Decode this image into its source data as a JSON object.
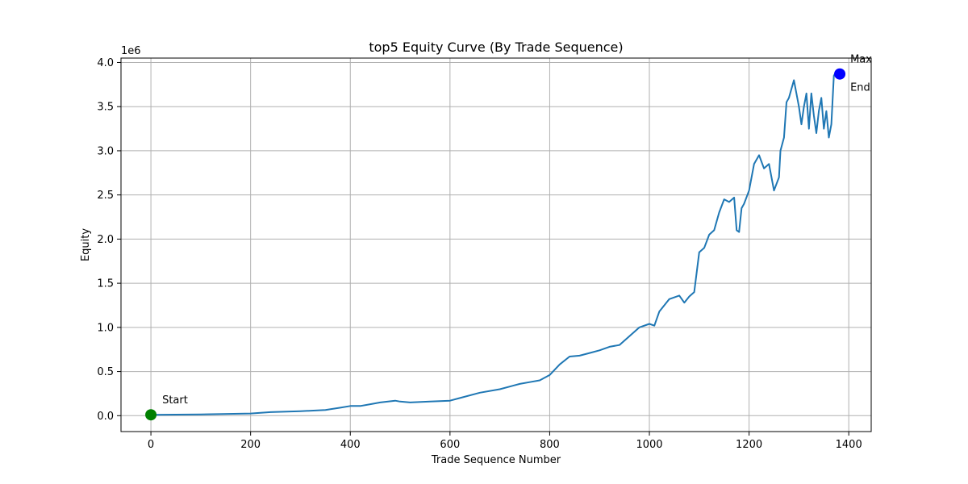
{
  "chart_data": {
    "type": "line",
    "title": "top5 Equity Curve (By Trade Sequence)",
    "xlabel": "Trade Sequence Number",
    "ylabel": "Equity",
    "y_offset_label": "1e6",
    "xlim": [
      -60,
      1445
    ],
    "ylim": [
      -0.18,
      4.05
    ],
    "x_ticks": [
      0,
      200,
      400,
      600,
      800,
      1000,
      1200,
      1400
    ],
    "x_tick_labels": [
      "0",
      "200",
      "400",
      "600",
      "800",
      "1000",
      "1200",
      "1400"
    ],
    "y_ticks": [
      0.0,
      0.5,
      1.0,
      1.5,
      2.0,
      2.5,
      3.0,
      3.5,
      4.0
    ],
    "y_tick_labels": [
      "0.0",
      "0.5",
      "1.0",
      "1.5",
      "2.0",
      "2.5",
      "3.0",
      "3.5",
      "4.0"
    ],
    "grid": true,
    "series": [
      {
        "color": "#1f77b4",
        "x": [
          0,
          100,
          200,
          240,
          300,
          350,
          380,
          400,
          420,
          440,
          460,
          490,
          500,
          520,
          560,
          600,
          620,
          660,
          700,
          740,
          760,
          780,
          800,
          820,
          840,
          860,
          880,
          900,
          920,
          940,
          960,
          980,
          1000,
          1010,
          1020,
          1040,
          1060,
          1070,
          1080,
          1090,
          1100,
          1110,
          1120,
          1130,
          1140,
          1150,
          1160,
          1170,
          1175,
          1180,
          1185,
          1190,
          1200,
          1210,
          1220,
          1230,
          1240,
          1250,
          1260,
          1263,
          1270,
          1275,
          1280,
          1290,
          1300,
          1305,
          1310,
          1315,
          1320,
          1325,
          1330,
          1335,
          1340,
          1345,
          1350,
          1355,
          1360,
          1365,
          1370,
          1372,
          1375,
          1378,
          1380,
          1383
        ],
        "y": [
          0.01,
          0.015,
          0.025,
          0.04,
          0.05,
          0.065,
          0.09,
          0.11,
          0.11,
          0.13,
          0.15,
          0.17,
          0.16,
          0.15,
          0.16,
          0.17,
          0.2,
          0.26,
          0.3,
          0.36,
          0.38,
          0.4,
          0.46,
          0.58,
          0.67,
          0.68,
          0.71,
          0.74,
          0.78,
          0.8,
          0.9,
          1.0,
          1.04,
          1.02,
          1.18,
          1.32,
          1.36,
          1.28,
          1.35,
          1.4,
          1.85,
          1.9,
          2.05,
          2.1,
          2.3,
          2.45,
          2.42,
          2.47,
          2.1,
          2.08,
          2.35,
          2.4,
          2.55,
          2.85,
          2.95,
          2.8,
          2.85,
          2.55,
          2.7,
          3.0,
          3.15,
          3.55,
          3.6,
          3.8,
          3.5,
          3.3,
          3.5,
          3.65,
          3.25,
          3.65,
          3.4,
          3.2,
          3.45,
          3.6,
          3.25,
          3.45,
          3.15,
          3.3,
          3.85,
          3.87,
          3.86,
          3.87,
          3.86,
          3.87
        ]
      }
    ],
    "annotations": [
      {
        "label": "Start",
        "x": 0,
        "y": 0.01,
        "color": "#008000"
      },
      {
        "label": "Max",
        "x": 1382,
        "y": 3.87,
        "color": "#0000ff"
      },
      {
        "label": "End",
        "x": 1382,
        "y": 3.87,
        "color": "#0000ff"
      }
    ]
  }
}
